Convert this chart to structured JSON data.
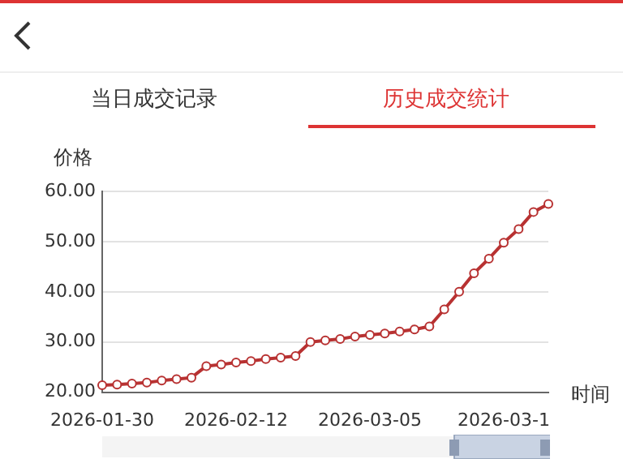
{
  "chart_data": {
    "type": "line",
    "ylabel": "价格",
    "xlabel": "时间",
    "categories": [
      "2026-01-30",
      null,
      null,
      null,
      null,
      null,
      null,
      null,
      null,
      "2026-02-12",
      null,
      null,
      null,
      null,
      null,
      null,
      null,
      null,
      "2026-03-05",
      null,
      null,
      null,
      null,
      null,
      null,
      null,
      null,
      "2026-03-1",
      null,
      null,
      null
    ],
    "series": [
      {
        "color": "#b83232",
        "values": [
          21.4,
          21.5,
          21.7,
          21.9,
          22.3,
          22.6,
          22.9,
          25.2,
          25.5,
          25.9,
          26.2,
          26.6,
          26.9,
          27.2,
          30.0,
          30.3,
          30.6,
          31.1,
          31.4,
          31.7,
          32.1,
          32.5,
          33.1,
          36.5,
          40.0,
          43.7,
          46.6,
          49.8,
          52.5,
          55.9,
          57.5
        ]
      }
    ],
    "ylim": [
      20,
      60
    ],
    "yticks": [
      {
        "value": 20,
        "label": "20.00"
      },
      {
        "value": 30,
        "label": "30.00"
      },
      {
        "value": 40,
        "label": "40.00"
      },
      {
        "value": 50,
        "label": "50.00"
      },
      {
        "value": 60,
        "label": "60.00"
      }
    ],
    "annotations": [
      "当日成交记录",
      "历史成交统计"
    ],
    "grid": "y",
    "legend": false,
    "marker": "circle",
    "line_style": "solid"
  }
}
